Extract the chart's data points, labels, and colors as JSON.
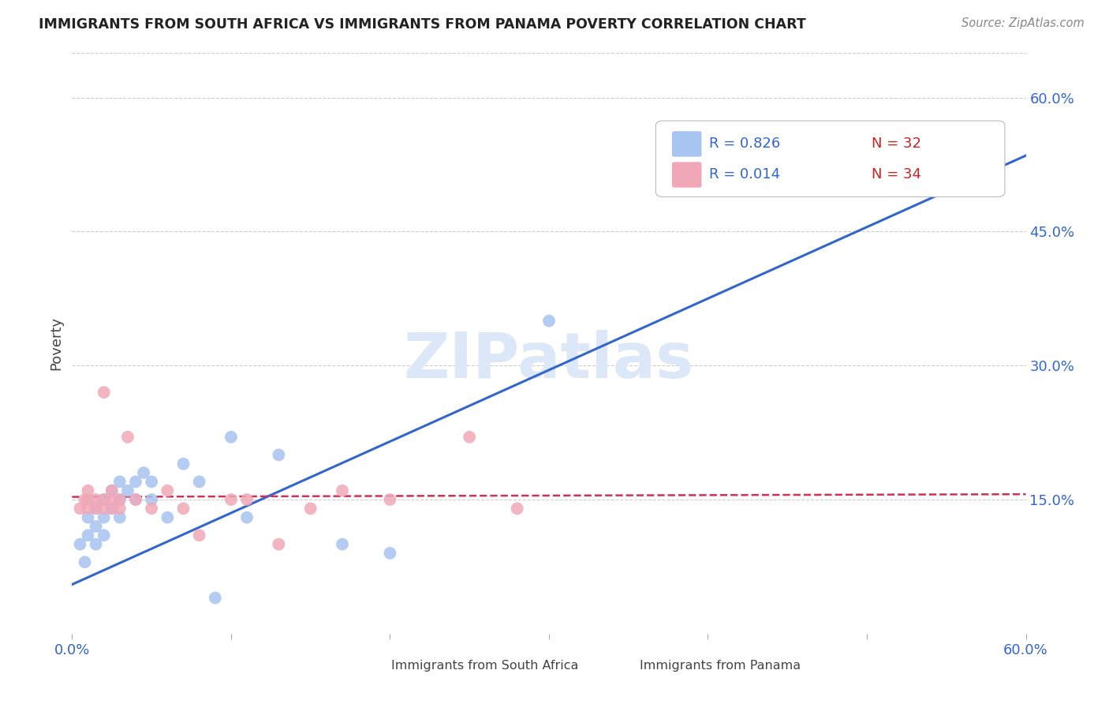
{
  "title": "IMMIGRANTS FROM SOUTH AFRICA VS IMMIGRANTS FROM PANAMA POVERTY CORRELATION CHART",
  "source": "Source: ZipAtlas.com",
  "ylabel": "Poverty",
  "xlim": [
    0.0,
    0.6
  ],
  "ylim": [
    0.0,
    0.65
  ],
  "ytick_positions": [
    0.15,
    0.3,
    0.45,
    0.6
  ],
  "ytick_labels": [
    "15.0%",
    "30.0%",
    "45.0%",
    "60.0%"
  ],
  "grid_color": "#cccccc",
  "background_color": "#ffffff",
  "watermark": "ZIPatlas",
  "blue_color": "#a8c4f0",
  "pink_color": "#f0a8b8",
  "blue_line_color": "#3366cc",
  "pink_line_color": "#cc3355",
  "tick_color": "#3366cc",
  "south_africa_x": [
    0.005,
    0.008,
    0.01,
    0.01,
    0.015,
    0.015,
    0.015,
    0.02,
    0.02,
    0.02,
    0.025,
    0.025,
    0.03,
    0.03,
    0.03,
    0.035,
    0.04,
    0.04,
    0.045,
    0.05,
    0.05,
    0.06,
    0.07,
    0.08,
    0.09,
    0.1,
    0.11,
    0.13,
    0.17,
    0.2,
    0.3,
    0.47
  ],
  "south_africa_y": [
    0.1,
    0.08,
    0.11,
    0.13,
    0.1,
    0.12,
    0.14,
    0.11,
    0.13,
    0.15,
    0.14,
    0.16,
    0.13,
    0.15,
    0.17,
    0.16,
    0.15,
    0.17,
    0.18,
    0.15,
    0.17,
    0.13,
    0.19,
    0.17,
    0.04,
    0.22,
    0.13,
    0.2,
    0.1,
    0.09,
    0.35,
    0.54
  ],
  "panama_x": [
    0.005,
    0.008,
    0.01,
    0.01,
    0.01,
    0.015,
    0.015,
    0.02,
    0.02,
    0.02,
    0.025,
    0.025,
    0.025,
    0.03,
    0.03,
    0.035,
    0.04,
    0.05,
    0.06,
    0.07,
    0.08,
    0.1,
    0.11,
    0.13,
    0.15,
    0.17,
    0.2,
    0.25,
    0.28
  ],
  "panama_y": [
    0.14,
    0.15,
    0.14,
    0.15,
    0.16,
    0.14,
    0.15,
    0.14,
    0.15,
    0.27,
    0.14,
    0.15,
    0.16,
    0.14,
    0.15,
    0.22,
    0.15,
    0.14,
    0.16,
    0.14,
    0.11,
    0.15,
    0.15,
    0.1,
    0.14,
    0.16,
    0.15,
    0.22,
    0.14
  ],
  "sa_line_x0": 0.0,
  "sa_line_y0": 0.055,
  "sa_line_x1": 0.6,
  "sa_line_y1": 0.535,
  "pan_line_x0": 0.0,
  "pan_line_y0": 0.153,
  "pan_line_x1": 0.6,
  "pan_line_y1": 0.156
}
